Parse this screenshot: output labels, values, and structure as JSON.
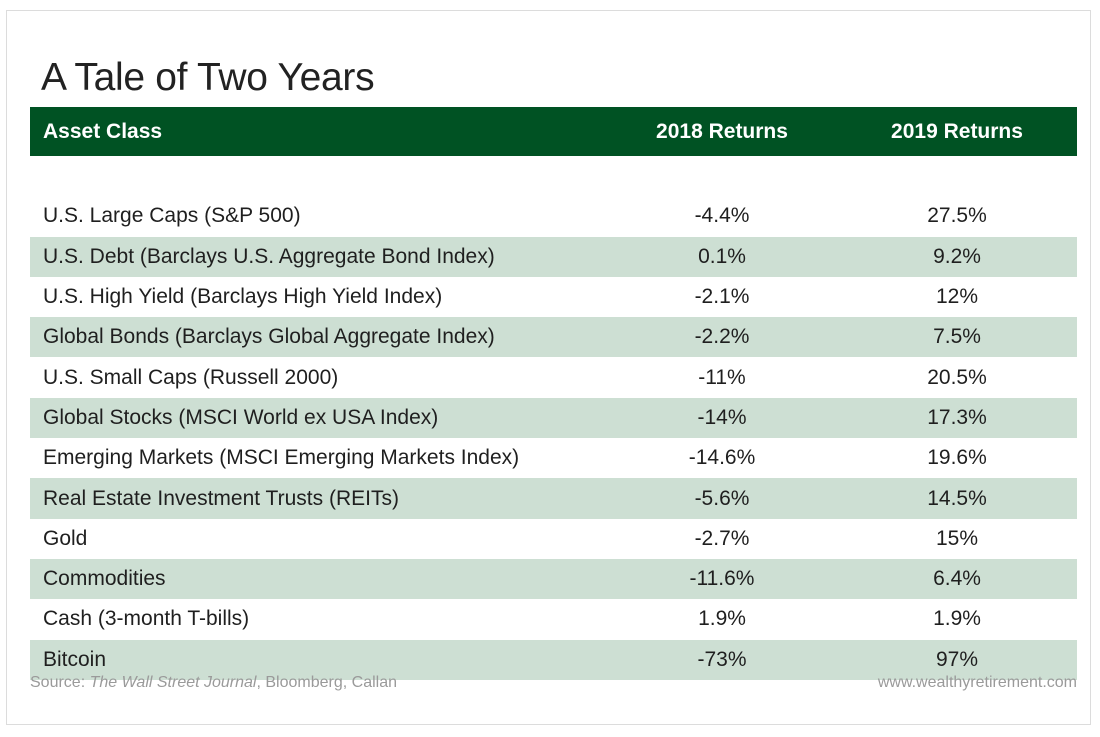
{
  "chart_data": {
    "type": "table",
    "title": "A Tale of Two Years",
    "columns": [
      "Asset Class",
      "2018 Returns",
      "2019 Returns"
    ],
    "rows": [
      {
        "asset": "U.S. Large Caps (S&P 500)",
        "r2018": "-4.4%",
        "r2019": "27.5%"
      },
      {
        "asset": "U.S. Debt (Barclays U.S. Aggregate Bond Index)",
        "r2018": "0.1%",
        "r2019": "9.2%"
      },
      {
        "asset": "U.S. High Yield (Barclays High Yield Index)",
        "r2018": "-2.1%",
        "r2019": "12%"
      },
      {
        "asset": "Global Bonds (Barclays Global Aggregate Index)",
        "r2018": "-2.2%",
        "r2019": "7.5%"
      },
      {
        "asset": "U.S. Small Caps (Russell 2000)",
        "r2018": "-11%",
        "r2019": "20.5%"
      },
      {
        "asset": "Global Stocks (MSCI World ex USA Index)",
        "r2018": "-14%",
        "r2019": "17.3%"
      },
      {
        "asset": "Emerging Markets (MSCI Emerging Markets Index)",
        "r2018": "-14.6%",
        "r2019": "19.6%"
      },
      {
        "asset": "Real Estate Investment Trusts (REITs)",
        "r2018": "-5.6%",
        "r2019": "14.5%"
      },
      {
        "asset": "Gold",
        "r2018": "-2.7%",
        "r2019": "15%"
      },
      {
        "asset": "Commodities",
        "r2018": "-11.6%",
        "r2019": "6.4%"
      },
      {
        "asset": "Cash (3-month T-bills)",
        "r2018": "1.9%",
        "r2019": "1.9%"
      },
      {
        "asset": "Bitcoin",
        "r2018": "-73%",
        "r2019": "97%"
      }
    ]
  },
  "footer": {
    "source_prefix": "Source: ",
    "source_journal": "The Wall Street Journal",
    "source_rest": ", Bloomberg, Callan",
    "site": "www.wealthyretirement.com"
  },
  "colors": {
    "header_bg": "#005223",
    "header_text": "#ffffff",
    "stripe": "#cddfd3",
    "footer_text": "#9a9a9a"
  }
}
